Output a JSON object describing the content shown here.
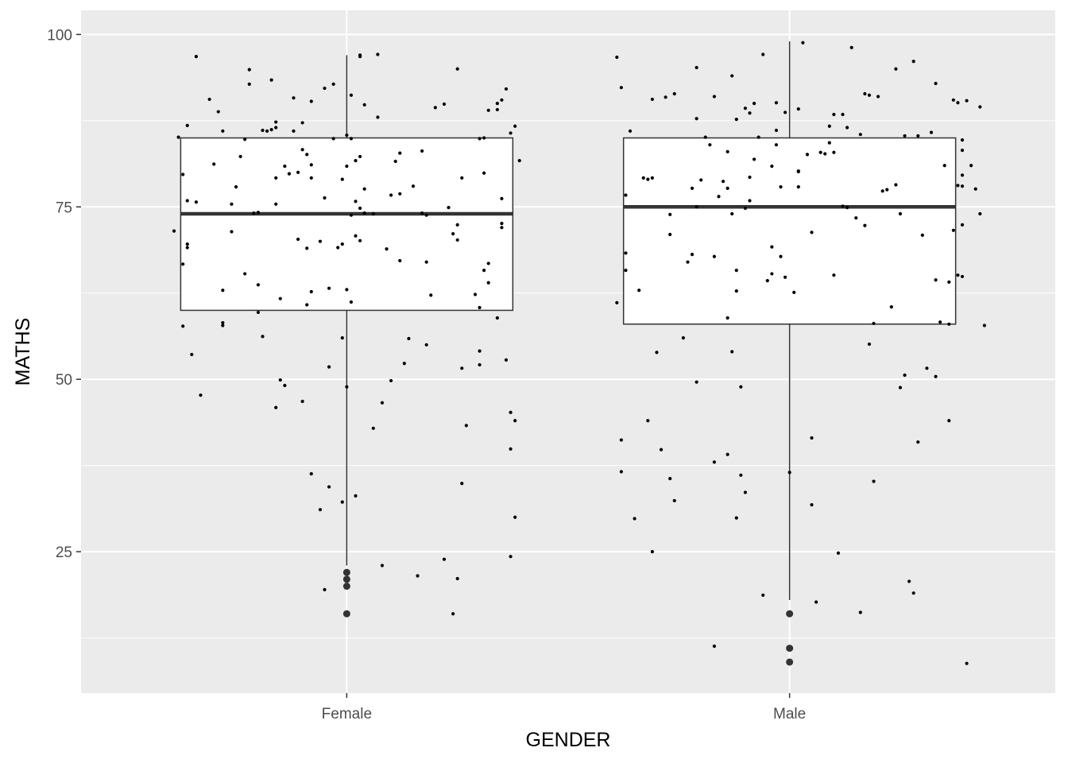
{
  "chart_data": {
    "type": "boxplot",
    "xlabel": "GENDER",
    "ylabel": "MATHS",
    "categories": [
      "Female",
      "Male"
    ],
    "ylim": [
      4.5,
      103.5
    ],
    "yticks": [
      25,
      50,
      75,
      100
    ],
    "grid": true,
    "legend": "none",
    "boxes": [
      {
        "category": "Female",
        "whisker_low": 23,
        "q1": 60,
        "median": 74,
        "q3": 85,
        "whisker_high": 97,
        "outliers": [
          22,
          21,
          20,
          16
        ]
      },
      {
        "category": "Male",
        "whisker_low": 18,
        "q1": 58,
        "median": 75,
        "q3": 85,
        "whisker_high": 99,
        "outliers": [
          16,
          11,
          9
        ]
      }
    ],
    "jitter_points": {
      "Female": [
        [
          -0.39,
          71.5
        ],
        [
          -0.37,
          57.7
        ],
        [
          -0.37,
          66.7
        ],
        [
          -0.37,
          79.7
        ],
        [
          -0.36,
          69.1
        ],
        [
          -0.36,
          86.8
        ],
        [
          -0.38,
          85.1
        ],
        [
          -0.36,
          75.9
        ],
        [
          -0.36,
          69.6
        ],
        [
          -0.35,
          53.6
        ],
        [
          -0.34,
          96.8
        ],
        [
          -0.34,
          75.7
        ],
        [
          -0.33,
          47.7
        ],
        [
          -0.31,
          90.6
        ],
        [
          -0.3,
          81.2
        ],
        [
          -0.29,
          88.8
        ],
        [
          -0.28,
          86.0
        ],
        [
          -0.28,
          62.9
        ],
        [
          -0.28,
          58.2
        ],
        [
          -0.28,
          57.8
        ],
        [
          -0.26,
          75.4
        ],
        [
          -0.26,
          71.4
        ],
        [
          -0.25,
          77.9
        ],
        [
          -0.24,
          82.3
        ],
        [
          -0.23,
          65.3
        ],
        [
          -0.23,
          84.8
        ],
        [
          -0.22,
          92.8
        ],
        [
          -0.22,
          94.9
        ],
        [
          -0.21,
          74.1
        ],
        [
          -0.2,
          63.7
        ],
        [
          -0.2,
          59.7
        ],
        [
          -0.2,
          74.2
        ],
        [
          -0.19,
          56.2
        ],
        [
          -0.19,
          86.1
        ],
        [
          -0.18,
          86.0
        ],
        [
          -0.17,
          86.2
        ],
        [
          -0.17,
          93.4
        ],
        [
          -0.16,
          87.3
        ],
        [
          -0.16,
          45.9
        ],
        [
          -0.16,
          86.5
        ],
        [
          -0.16,
          79.2
        ],
        [
          -0.16,
          75.4
        ],
        [
          -0.15,
          49.9
        ],
        [
          -0.15,
          61.7
        ],
        [
          -0.14,
          80.9
        ],
        [
          -0.14,
          49.1
        ],
        [
          -0.13,
          79.8
        ],
        [
          -0.12,
          86.0
        ],
        [
          -0.12,
          90.8
        ],
        [
          -0.11,
          80.0
        ],
        [
          -0.11,
          70.3
        ],
        [
          -0.1,
          46.8
        ],
        [
          -0.1,
          83.3
        ],
        [
          -0.1,
          87.2
        ],
        [
          -0.09,
          69.0
        ],
        [
          -0.09,
          60.8
        ],
        [
          -0.09,
          82.6
        ],
        [
          -0.08,
          79.2
        ],
        [
          -0.08,
          62.7
        ],
        [
          -0.08,
          81.1
        ],
        [
          -0.08,
          36.3
        ],
        [
          -0.08,
          90.3
        ],
        [
          -0.06,
          31.1
        ],
        [
          -0.06,
          70.0
        ],
        [
          -0.05,
          92.2
        ],
        [
          -0.05,
          76.3
        ],
        [
          -0.05,
          19.5
        ],
        [
          -0.04,
          51.8
        ],
        [
          -0.04,
          63.2
        ],
        [
          -0.04,
          34.4
        ],
        [
          -0.03,
          92.8
        ],
        [
          -0.03,
          84.9
        ],
        [
          -0.02,
          69.1
        ],
        [
          -0.01,
          69.6
        ],
        [
          -0.01,
          79.0
        ],
        [
          -0.01,
          56.0
        ],
        [
          -0.01,
          32.2
        ],
        [
          0.0,
          63.0
        ],
        [
          0.0,
          48.9
        ],
        [
          0.0,
          80.9
        ],
        [
          0.0,
          85.4
        ],
        [
          0.01,
          84.9
        ],
        [
          0.01,
          61.2
        ],
        [
          0.01,
          91.2
        ],
        [
          0.01,
          73.8
        ],
        [
          0.02,
          70.8
        ],
        [
          0.02,
          75.8
        ],
        [
          0.02,
          33.1
        ],
        [
          0.02,
          81.7
        ],
        [
          0.03,
          96.8
        ],
        [
          0.03,
          97.0
        ],
        [
          0.03,
          82.3
        ],
        [
          0.03,
          70.1
        ],
        [
          0.03,
          74.8
        ],
        [
          0.04,
          77.6
        ],
        [
          0.04,
          74.1
        ],
        [
          0.04,
          89.8
        ],
        [
          0.06,
          74.0
        ],
        [
          0.06,
          42.9
        ],
        [
          0.06,
          74.0
        ],
        [
          0.07,
          97.1
        ],
        [
          0.07,
          88.0
        ],
        [
          0.08,
          46.6
        ],
        [
          0.08,
          23.0
        ],
        [
          0.09,
          68.9
        ],
        [
          0.1,
          49.8
        ],
        [
          0.1,
          76.7
        ],
        [
          0.11,
          81.6
        ],
        [
          0.12,
          67.2
        ],
        [
          0.12,
          76.9
        ],
        [
          0.12,
          82.8
        ],
        [
          0.13,
          52.3
        ],
        [
          0.14,
          55.9
        ],
        [
          0.15,
          78.0
        ],
        [
          0.16,
          21.5
        ],
        [
          0.17,
          74.1
        ],
        [
          0.17,
          83.1
        ],
        [
          0.18,
          67.0
        ],
        [
          0.18,
          55.0
        ],
        [
          0.18,
          73.8
        ],
        [
          0.19,
          62.2
        ],
        [
          0.2,
          89.4
        ],
        [
          0.22,
          23.9
        ],
        [
          0.22,
          89.9
        ],
        [
          0.23,
          74.9
        ],
        [
          0.24,
          71.1
        ],
        [
          0.24,
          16.0
        ],
        [
          0.25,
          70.2
        ],
        [
          0.25,
          72.4
        ],
        [
          0.25,
          95.0
        ],
        [
          0.25,
          21.1
        ],
        [
          0.26,
          79.2
        ],
        [
          0.26,
          51.6
        ],
        [
          0.26,
          34.9
        ],
        [
          0.27,
          43.3
        ],
        [
          0.29,
          62.3
        ],
        [
          0.3,
          54.1
        ],
        [
          0.3,
          84.9
        ],
        [
          0.3,
          52.1
        ],
        [
          0.3,
          60.4
        ],
        [
          0.31,
          79.9
        ],
        [
          0.31,
          85.0
        ],
        [
          0.31,
          65.8
        ],
        [
          0.32,
          66.8
        ],
        [
          0.32,
          64.0
        ],
        [
          0.32,
          89.0
        ],
        [
          0.34,
          89.1
        ],
        [
          0.34,
          90.0
        ],
        [
          0.34,
          58.9
        ],
        [
          0.35,
          90.5
        ],
        [
          0.35,
          72.6
        ],
        [
          0.35,
          76.2
        ],
        [
          0.35,
          72.0
        ],
        [
          0.36,
          52.8
        ],
        [
          0.36,
          92.1
        ],
        [
          0.37,
          45.2
        ],
        [
          0.37,
          24.3
        ],
        [
          0.37,
          85.7
        ],
        [
          0.37,
          39.9
        ],
        [
          0.38,
          44.0
        ],
        [
          0.38,
          86.7
        ],
        [
          0.38,
          30.0
        ],
        [
          0.39,
          81.7
        ]
      ],
      "Male": [
        [
          -0.39,
          96.7
        ],
        [
          -0.39,
          61.1
        ],
        [
          -0.38,
          92.3
        ],
        [
          -0.38,
          41.2
        ],
        [
          -0.38,
          36.6
        ],
        [
          -0.37,
          76.7
        ],
        [
          -0.37,
          68.3
        ],
        [
          -0.37,
          65.8
        ],
        [
          -0.36,
          86.0
        ],
        [
          -0.35,
          29.8
        ],
        [
          -0.34,
          62.9
        ],
        [
          -0.33,
          79.2
        ],
        [
          -0.32,
          79.0
        ],
        [
          -0.32,
          44.0
        ],
        [
          -0.31,
          79.2
        ],
        [
          -0.31,
          90.6
        ],
        [
          -0.31,
          25.0
        ],
        [
          -0.3,
          53.9
        ],
        [
          -0.29,
          39.8
        ],
        [
          -0.28,
          90.9
        ],
        [
          -0.27,
          35.6
        ],
        [
          -0.27,
          73.9
        ],
        [
          -0.27,
          71.0
        ],
        [
          -0.26,
          91.4
        ],
        [
          -0.26,
          32.4
        ],
        [
          -0.24,
          56.0
        ],
        [
          -0.23,
          67.0
        ],
        [
          -0.22,
          77.7
        ],
        [
          -0.22,
          68.1
        ],
        [
          -0.21,
          49.6
        ],
        [
          -0.21,
          95.2
        ],
        [
          -0.21,
          75.0
        ],
        [
          -0.21,
          87.8
        ],
        [
          -0.2,
          78.9
        ],
        [
          -0.19,
          85.1
        ],
        [
          -0.18,
          84.0
        ],
        [
          -0.17,
          91.0
        ],
        [
          -0.17,
          38.0
        ],
        [
          -0.17,
          11.3
        ],
        [
          -0.17,
          67.8
        ],
        [
          -0.16,
          76.5
        ],
        [
          -0.15,
          78.7
        ],
        [
          -0.14,
          58.9
        ],
        [
          -0.14,
          83.0
        ],
        [
          -0.14,
          39.1
        ],
        [
          -0.14,
          77.7
        ],
        [
          -0.13,
          74.0
        ],
        [
          -0.13,
          94.0
        ],
        [
          -0.13,
          54.0
        ],
        [
          -0.12,
          29.9
        ],
        [
          -0.12,
          62.8
        ],
        [
          -0.12,
          65.8
        ],
        [
          -0.12,
          87.7
        ],
        [
          -0.11,
          48.9
        ],
        [
          -0.11,
          36.1
        ],
        [
          -0.1,
          74.8
        ],
        [
          -0.1,
          33.6
        ],
        [
          -0.1,
          89.3
        ],
        [
          -0.09,
          75.9
        ],
        [
          -0.09,
          79.3
        ],
        [
          -0.09,
          88.6
        ],
        [
          -0.08,
          81.9
        ],
        [
          -0.08,
          90.0
        ],
        [
          -0.07,
          85.1
        ],
        [
          -0.06,
          18.7
        ],
        [
          -0.06,
          97.1
        ],
        [
          -0.05,
          64.3
        ],
        [
          -0.04,
          80.9
        ],
        [
          -0.04,
          65.3
        ],
        [
          -0.04,
          69.2
        ],
        [
          -0.03,
          84.0
        ],
        [
          -0.03,
          86.1
        ],
        [
          -0.03,
          90.1
        ],
        [
          -0.02,
          67.8
        ],
        [
          -0.02,
          77.9
        ],
        [
          -0.01,
          64.8
        ],
        [
          -0.01,
          88.7
        ],
        [
          0.0,
          36.5
        ],
        [
          0.01,
          62.6
        ],
        [
          0.02,
          80.1
        ],
        [
          0.02,
          80.2
        ],
        [
          0.02,
          77.9
        ],
        [
          0.02,
          89.2
        ],
        [
          0.03,
          98.8
        ],
        [
          0.04,
          82.6
        ],
        [
          0.05,
          41.5
        ],
        [
          0.05,
          31.8
        ],
        [
          0.05,
          71.3
        ],
        [
          0.06,
          17.7
        ],
        [
          0.07,
          82.9
        ],
        [
          0.08,
          82.7
        ],
        [
          0.09,
          84.3
        ],
        [
          0.09,
          86.7
        ],
        [
          0.1,
          88.4
        ],
        [
          0.1,
          82.9
        ],
        [
          0.1,
          65.1
        ],
        [
          0.11,
          24.8
        ],
        [
          0.12,
          75.1
        ],
        [
          0.12,
          88.4
        ],
        [
          0.13,
          74.9
        ],
        [
          0.13,
          86.5
        ],
        [
          0.14,
          98.1
        ],
        [
          0.15,
          73.4
        ],
        [
          0.16,
          16.2
        ],
        [
          0.16,
          85.5
        ],
        [
          0.17,
          72.3
        ],
        [
          0.17,
          91.4
        ],
        [
          0.18,
          91.2
        ],
        [
          0.18,
          55.1
        ],
        [
          0.19,
          35.2
        ],
        [
          0.19,
          58.1
        ],
        [
          0.2,
          91.0
        ],
        [
          0.21,
          77.3
        ],
        [
          0.22,
          77.5
        ],
        [
          0.23,
          60.5
        ],
        [
          0.24,
          78.2
        ],
        [
          0.24,
          95.0
        ],
        [
          0.25,
          74.0
        ],
        [
          0.25,
          48.8
        ],
        [
          0.26,
          50.6
        ],
        [
          0.26,
          85.3
        ],
        [
          0.27,
          20.7
        ],
        [
          0.28,
          96.1
        ],
        [
          0.28,
          19.0
        ],
        [
          0.29,
          40.9
        ],
        [
          0.29,
          85.3
        ],
        [
          0.3,
          70.9
        ],
        [
          0.31,
          51.6
        ],
        [
          0.32,
          85.8
        ],
        [
          0.33,
          64.4
        ],
        [
          0.33,
          92.9
        ],
        [
          0.33,
          50.4
        ],
        [
          0.34,
          58.3
        ],
        [
          0.35,
          81.0
        ],
        [
          0.36,
          64.1
        ],
        [
          0.36,
          44.0
        ],
        [
          0.36,
          58.0
        ],
        [
          0.37,
          71.6
        ],
        [
          0.37,
          90.5
        ],
        [
          0.38,
          78.1
        ],
        [
          0.38,
          90.1
        ],
        [
          0.38,
          65.1
        ],
        [
          0.39,
          84.7
        ],
        [
          0.39,
          78.0
        ],
        [
          0.39,
          79.6
        ],
        [
          0.39,
          83.2
        ],
        [
          0.39,
          64.9
        ],
        [
          0.39,
          72.4
        ],
        [
          0.4,
          90.4
        ],
        [
          0.4,
          8.8
        ],
        [
          0.41,
          81.0
        ],
        [
          0.42,
          77.6
        ],
        [
          0.43,
          89.5
        ],
        [
          0.43,
          74.0
        ],
        [
          0.44,
          57.8
        ]
      ]
    }
  }
}
